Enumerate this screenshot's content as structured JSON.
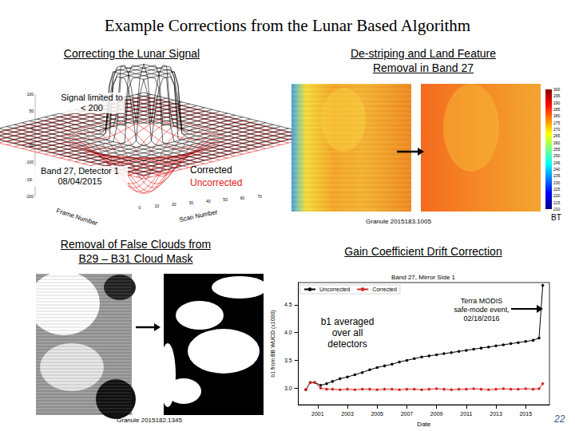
{
  "title": "Example Corrections from the Lunar Based Algorithm",
  "page_number": 22,
  "panels": [
    {
      "heading": "Correcting the Lunar Signal",
      "annotation": "Signal limited to < 200",
      "band_label": [
        "Band 27, Detector 1",
        "08/04/2015"
      ],
      "legend": [
        {
          "name": "Corrected",
          "color": "#000000"
        },
        {
          "name": "Uncorrected",
          "color": "#e02020"
        }
      ],
      "axes": {
        "x_label": "Frame Number",
        "y_label": "Scan Number",
        "z_ticks": [
          100,
          50,
          0,
          -50,
          -100,
          -150,
          -200
        ],
        "y_ticks": [
          0,
          10,
          20,
          30,
          40,
          50,
          60,
          70
        ]
      }
    },
    {
      "heading": "De-striping and Land Feature Removal in Band 27",
      "granule": "Granule 2015183.1005",
      "colorbar": {
        "label": "BT",
        "range": [
          210,
          300
        ],
        "ticks": [
          210,
          215,
          220,
          225,
          230,
          235,
          240,
          245,
          250,
          255,
          260,
          265,
          270,
          275,
          280,
          285,
          290,
          295,
          300
        ]
      }
    },
    {
      "heading": "Removal of False Clouds from B29 – B31 Cloud Mask",
      "granule": "Granule 2015182.1345"
    },
    {
      "heading": "Gain Coefficient Drift Correction"
    }
  ],
  "chart_data": {
    "type": "line",
    "title": "Band 27, Mirror Side 1",
    "x_label": "Date",
    "y_label": "b1 from BB WUCD (x1000)",
    "x": [
      2000.2,
      2000.5,
      2000.8,
      2001.2,
      2001.6,
      2002.0,
      2002.5,
      2003.0,
      2003.5,
      2004.0,
      2004.5,
      2005.0,
      2005.5,
      2006.0,
      2006.5,
      2007.0,
      2007.5,
      2008.0,
      2008.5,
      2009.0,
      2009.5,
      2010.0,
      2010.5,
      2011.0,
      2011.5,
      2012.0,
      2012.5,
      2013.0,
      2013.5,
      2014.0,
      2014.5,
      2015.0,
      2015.5,
      2015.9,
      2016.15
    ],
    "series": [
      {
        "name": "Uncorrected",
        "color": "#000000",
        "values": [
          2.97,
          3.1,
          3.1,
          3.05,
          3.08,
          3.12,
          3.17,
          3.2,
          3.24,
          3.28,
          3.33,
          3.37,
          3.4,
          3.43,
          3.47,
          3.5,
          3.53,
          3.56,
          3.58,
          3.6,
          3.62,
          3.64,
          3.66,
          3.68,
          3.7,
          3.72,
          3.74,
          3.76,
          3.78,
          3.8,
          3.82,
          3.84,
          3.86,
          3.9,
          4.85
        ]
      },
      {
        "name": "Corrected",
        "color": "#d62728",
        "values": [
          2.97,
          3.1,
          3.1,
          3.0,
          2.98,
          2.98,
          2.97,
          2.98,
          2.97,
          2.98,
          2.98,
          2.97,
          2.98,
          2.98,
          2.97,
          2.98,
          2.98,
          2.97,
          2.98,
          2.99,
          2.98,
          2.97,
          2.98,
          2.98,
          2.99,
          2.98,
          2.97,
          2.98,
          2.99,
          2.98,
          2.98,
          2.99,
          2.98,
          2.99,
          3.08
        ]
      }
    ],
    "xlim": [
      1999.7,
      2016.6
    ],
    "xticks": [
      2001,
      2003,
      2005,
      2007,
      2009,
      2011,
      2013,
      2015
    ],
    "ylim": [
      2.7,
      4.9
    ],
    "yticks": [
      {
        "value": 3,
        "label": "3.0"
      },
      {
        "value": 3.5,
        "label": "3.5"
      },
      {
        "value": 4,
        "label": "4.0"
      },
      {
        "value": 4.5,
        "label": "4.5"
      }
    ],
    "legend": "upper left",
    "marker": "circle",
    "grid": false,
    "annotations": [
      "b1 averaged over all detectors",
      "Terra MODIS safe-mode event, 02/18/2016"
    ]
  }
}
